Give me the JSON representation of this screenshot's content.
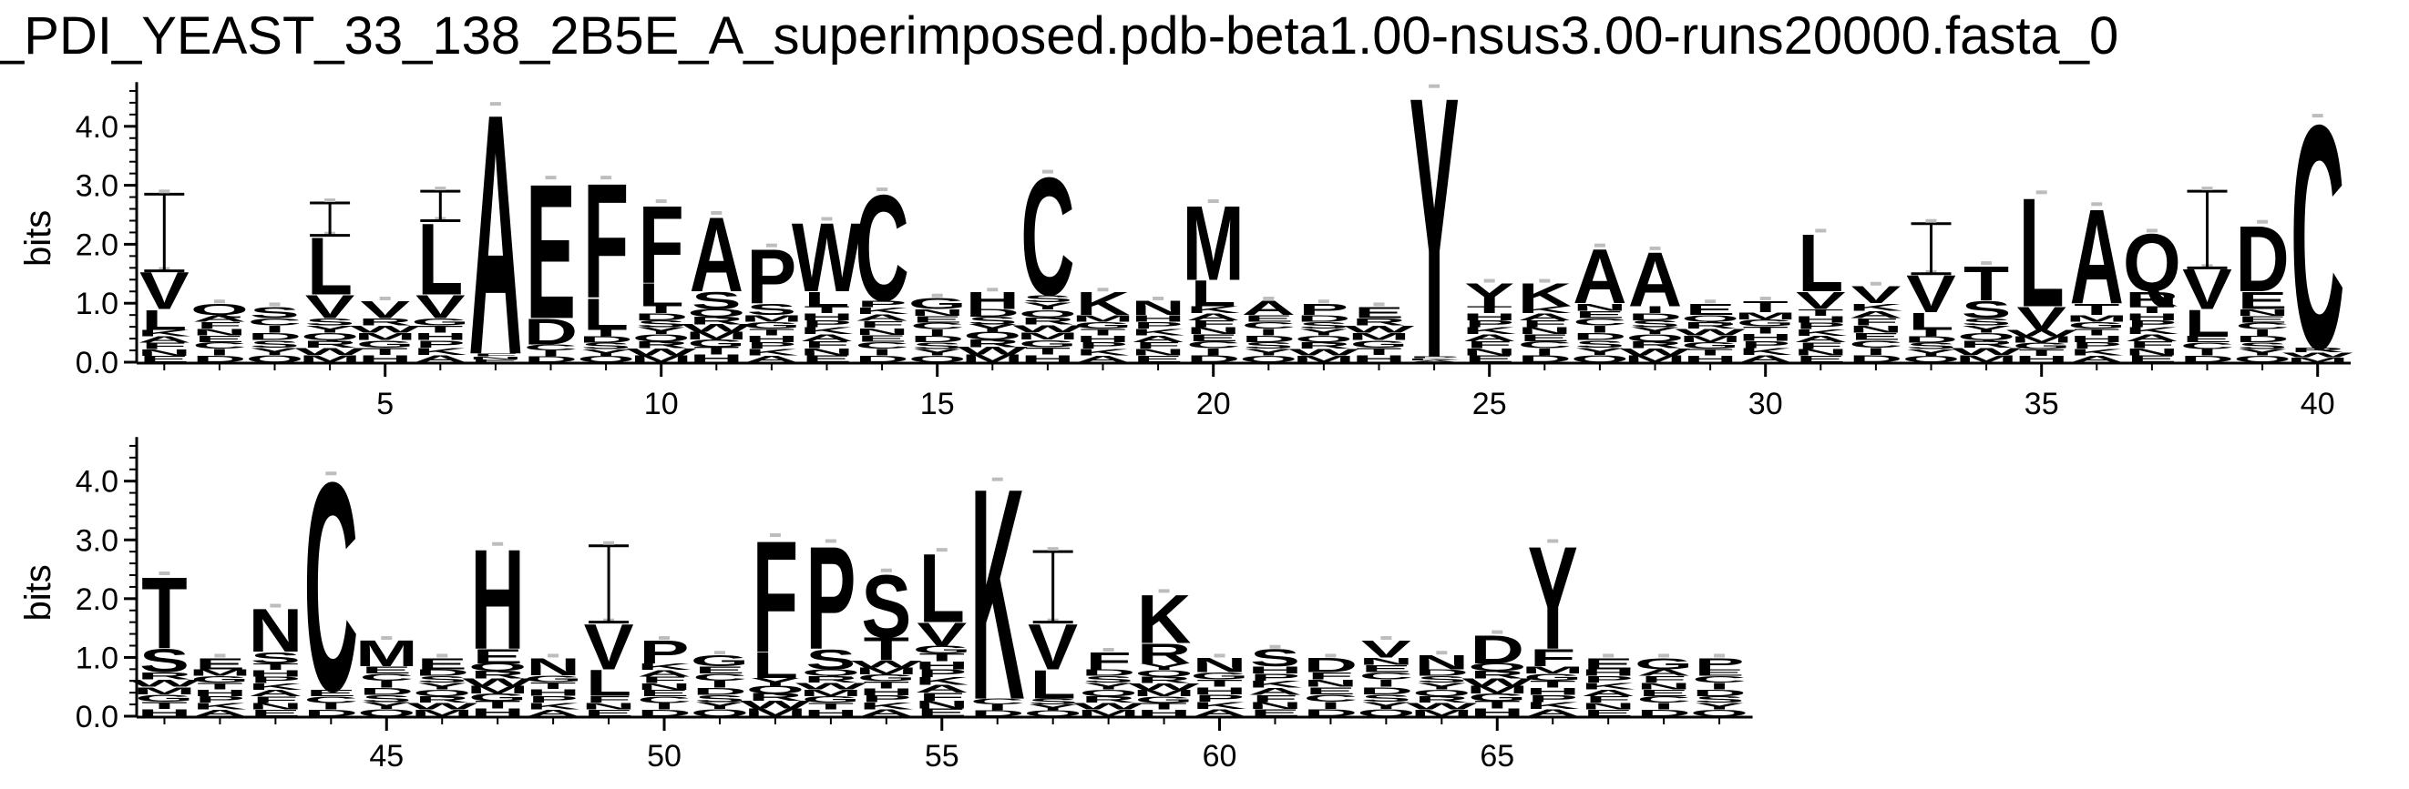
{
  "title": "_PDI_YEAST_33_138_2B5E_A_superimposed.pdb-beta1.00-nsus3.00-runs20000.fasta_0",
  "colors": {
    "ink": "#000000",
    "cap": "#bdbdbd",
    "background": "#ffffff"
  },
  "chart_data": [
    {
      "type": "sequence-logo",
      "row": 1,
      "ylabel": "bits",
      "ylim": [
        0,
        4.8
      ],
      "yticks": [
        "0.0",
        "1.0",
        "2.0",
        "3.0",
        "4.0"
      ],
      "xlim": [
        0.5,
        40.5
      ],
      "xticks": [
        "5",
        "10",
        "15",
        "20",
        "25",
        "30",
        "35",
        "40"
      ],
      "positions": [
        {
          "pos": 1,
          "top": "V",
          "top_h": 0.65,
          "second": "L",
          "second_h": 0.35,
          "total": 1.55,
          "err": 1.3
        },
        {
          "pos": 2,
          "top": "Q",
          "top_h": 0.2,
          "second": "",
          "second_h": 0,
          "total": 1.0,
          "err": 0
        },
        {
          "pos": 3,
          "top": "S",
          "top_h": 0.2,
          "second": "",
          "second_h": 0,
          "total": 0.95,
          "err": 0
        },
        {
          "pos": 4,
          "top": "L",
          "top_h": 1.0,
          "second": "V",
          "second_h": 0.4,
          "total": 2.15,
          "err": 0.55
        },
        {
          "pos": 5,
          "top": "V",
          "top_h": 0.3,
          "second": "",
          "second_h": 0,
          "total": 1.05,
          "err": 0
        },
        {
          "pos": 6,
          "top": "L",
          "top_h": 1.25,
          "second": "V",
          "second_h": 0.4,
          "total": 2.4,
          "err": 0.5
        },
        {
          "pos": 7,
          "top": "A",
          "top_h": 4.2,
          "second": "",
          "second_h": 0,
          "total": 4.35,
          "err": 0
        },
        {
          "pos": 8,
          "top": "E",
          "top_h": 2.35,
          "second": "D",
          "second_h": 0.45,
          "total": 3.1,
          "err": 0
        },
        {
          "pos": 9,
          "top": "F",
          "top_h": 2.0,
          "second": "L",
          "second_h": 0.55,
          "total": 3.1,
          "err": 0
        },
        {
          "pos": 10,
          "top": "F",
          "top_h": 1.35,
          "second": "L",
          "second_h": 0.4,
          "total": 2.7,
          "err": 0
        },
        {
          "pos": 11,
          "top": "A",
          "top_h": 1.3,
          "second": "S",
          "second_h": 0.3,
          "total": 2.5,
          "err": 0
        },
        {
          "pos": 12,
          "top": "P",
          "top_h": 0.95,
          "second": "S",
          "second_h": 0.2,
          "total": 1.95,
          "err": 0
        },
        {
          "pos": 13,
          "top": "W",
          "top_h": 1.2,
          "second": "L",
          "second_h": 0.25,
          "total": 2.4,
          "err": 0
        },
        {
          "pos": 14,
          "top": "C",
          "top_h": 1.85,
          "second": "",
          "second_h": 0,
          "total": 2.9,
          "err": 0
        },
        {
          "pos": 15,
          "top": "G",
          "top_h": 0.2,
          "second": "",
          "second_h": 0,
          "total": 1.1,
          "err": 0
        },
        {
          "pos": 16,
          "top": "H",
          "top_h": 0.3,
          "second": "",
          "second_h": 0,
          "total": 1.2,
          "err": 0
        },
        {
          "pos": 17,
          "top": "C",
          "top_h": 2.05,
          "second": "",
          "second_h": 0,
          "total": 3.2,
          "err": 0
        },
        {
          "pos": 18,
          "top": "K",
          "top_h": 0.4,
          "second": "",
          "second_h": 0,
          "total": 1.2,
          "err": 0
        },
        {
          "pos": 19,
          "top": "N",
          "top_h": 0.25,
          "second": "",
          "second_h": 0,
          "total": 1.05,
          "err": 0
        },
        {
          "pos": 20,
          "top": "M",
          "top_h": 1.3,
          "second": "L",
          "second_h": 0.45,
          "total": 2.7,
          "err": 0
        },
        {
          "pos": 21,
          "top": "A",
          "top_h": 0.25,
          "second": "",
          "second_h": 0,
          "total": 1.05,
          "err": 0
        },
        {
          "pos": 22,
          "top": "P",
          "top_h": 0.2,
          "second": "",
          "second_h": 0,
          "total": 1.0,
          "err": 0
        },
        {
          "pos": 23,
          "top": "E",
          "top_h": 0.2,
          "second": "",
          "second_h": 0,
          "total": 0.95,
          "err": 0
        },
        {
          "pos": 24,
          "top": "Y",
          "top_h": 4.55,
          "second": "",
          "second_h": 0,
          "total": 4.65,
          "err": 0
        },
        {
          "pos": 25,
          "top": "Y",
          "top_h": 0.4,
          "second": "",
          "second_h": 0,
          "total": 1.35,
          "err": 0
        },
        {
          "pos": 26,
          "top": "K",
          "top_h": 0.4,
          "second": "",
          "second_h": 0,
          "total": 1.35,
          "err": 0
        },
        {
          "pos": 27,
          "top": "A",
          "top_h": 0.95,
          "second": "",
          "second_h": 0,
          "total": 1.95,
          "err": 0
        },
        {
          "pos": 28,
          "top": "A",
          "top_h": 0.95,
          "second": "",
          "second_h": 0,
          "total": 1.9,
          "err": 0
        },
        {
          "pos": 29,
          "top": "E",
          "top_h": 0.2,
          "second": "",
          "second_h": 0,
          "total": 1.0,
          "err": 0
        },
        {
          "pos": 30,
          "top": "T",
          "top_h": 0.2,
          "second": "",
          "second_h": 0,
          "total": 1.05,
          "err": 0
        },
        {
          "pos": 31,
          "top": "L",
          "top_h": 1.0,
          "second": "V",
          "second_h": 0.3,
          "total": 2.2,
          "err": 0
        },
        {
          "pos": 32,
          "top": "V",
          "top_h": 0.3,
          "second": "",
          "second_h": 0,
          "total": 1.3,
          "err": 0
        },
        {
          "pos": 33,
          "top": "V",
          "top_h": 0.65,
          "second": "L",
          "second_h": 0.3,
          "total": 1.5,
          "err": 0.85
        },
        {
          "pos": 34,
          "top": "T",
          "top_h": 0.6,
          "second": "S",
          "second_h": 0.3,
          "total": 1.65,
          "err": 0
        },
        {
          "pos": 35,
          "top": "L",
          "top_h": 1.9,
          "second": "V",
          "second_h": 0.4,
          "total": 2.85,
          "err": 0
        },
        {
          "pos": 36,
          "top": "A",
          "top_h": 1.65,
          "second": "T",
          "second_h": 0.2,
          "total": 2.65,
          "err": 0
        },
        {
          "pos": 37,
          "top": "Q",
          "top_h": 1.0,
          "second": "R",
          "second_h": 0.25,
          "total": 2.2,
          "err": 0
        },
        {
          "pos": 38,
          "top": "V",
          "top_h": 0.7,
          "second": "L",
          "second_h": 0.45,
          "total": 1.6,
          "err": 1.3
        },
        {
          "pos": 39,
          "top": "D",
          "top_h": 1.15,
          "second": "E",
          "second_h": 0.3,
          "total": 2.35,
          "err": 0
        },
        {
          "pos": 40,
          "top": "C",
          "top_h": 3.9,
          "second": "",
          "second_h": 0,
          "total": 4.15,
          "err": 0
        }
      ]
    },
    {
      "type": "sequence-logo",
      "row": 2,
      "ylabel": "bits",
      "ylim": [
        0,
        4.8
      ],
      "yticks": [
        "0.0",
        "1.0",
        "2.0",
        "3.0",
        "4.0"
      ],
      "xlim": [
        40.5,
        69.5
      ],
      "xticks": [
        "45",
        "50",
        "55",
        "60",
        "65"
      ],
      "positions": [
        {
          "pos": 41,
          "top": "T",
          "top_h": 1.25,
          "second": "S",
          "second_h": 0.4,
          "total": 2.4,
          "err": 0
        },
        {
          "pos": 42,
          "top": "E",
          "top_h": 0.2,
          "second": "",
          "second_h": 0,
          "total": 1.0,
          "err": 0
        },
        {
          "pos": 43,
          "top": "N",
          "top_h": 0.75,
          "second": "S",
          "second_h": 0.2,
          "total": 1.85,
          "err": 0
        },
        {
          "pos": 44,
          "top": "C",
          "top_h": 3.65,
          "second": "",
          "second_h": 0,
          "total": 4.1,
          "err": 0
        },
        {
          "pos": 45,
          "top": "M",
          "top_h": 0.45,
          "second": "",
          "second_h": 0,
          "total": 1.3,
          "err": 0
        },
        {
          "pos": 46,
          "top": "E",
          "top_h": 0.2,
          "second": "",
          "second_h": 0,
          "total": 1.0,
          "err": 0
        },
        {
          "pos": 47,
          "top": "H",
          "top_h": 1.75,
          "second": "E",
          "second_h": 0.25,
          "total": 2.9,
          "err": 0
        },
        {
          "pos": 48,
          "top": "N",
          "top_h": 0.3,
          "second": "",
          "second_h": 0,
          "total": 1.0,
          "err": 0
        },
        {
          "pos": 49,
          "top": "V",
          "top_h": 0.8,
          "second": "L",
          "second_h": 0.45,
          "total": 1.6,
          "err": 1.3
        },
        {
          "pos": 50,
          "top": "P",
          "top_h": 0.4,
          "second": "",
          "second_h": 0,
          "total": 1.3,
          "err": 0
        },
        {
          "pos": 51,
          "top": "G",
          "top_h": 0.2,
          "second": "",
          "second_h": 0,
          "total": 1.05,
          "err": 0
        },
        {
          "pos": 52,
          "top": "F",
          "top_h": 1.95,
          "second": "L",
          "second_h": 0.45,
          "total": 3.05,
          "err": 0
        },
        {
          "pos": 53,
          "top": "P",
          "top_h": 1.8,
          "second": "S",
          "second_h": 0.35,
          "total": 2.95,
          "err": 0
        },
        {
          "pos": 54,
          "top": "S",
          "top_h": 1.1,
          "second": "T",
          "second_h": 0.4,
          "total": 2.45,
          "err": 0
        },
        {
          "pos": 55,
          "top": "L",
          "top_h": 1.2,
          "second": "V",
          "second_h": 0.4,
          "total": 2.8,
          "err": 0
        },
        {
          "pos": 56,
          "top": "K",
          "top_h": 3.7,
          "second": "",
          "second_h": 0,
          "total": 4.0,
          "err": 0
        },
        {
          "pos": 57,
          "top": "V",
          "top_h": 0.8,
          "second": "L",
          "second_h": 0.5,
          "total": 1.6,
          "err": 1.2
        },
        {
          "pos": 58,
          "top": "F",
          "top_h": 0.3,
          "second": "",
          "second_h": 0,
          "total": 1.1,
          "err": 0
        },
        {
          "pos": 59,
          "top": "K",
          "top_h": 0.85,
          "second": "R",
          "second_h": 0.35,
          "total": 2.1,
          "err": 0
        },
        {
          "pos": 60,
          "top": "N",
          "top_h": 0.25,
          "second": "",
          "second_h": 0,
          "total": 1.0,
          "err": 0
        },
        {
          "pos": 61,
          "top": "S",
          "top_h": 0.3,
          "second": "",
          "second_h": 0,
          "total": 1.15,
          "err": 0
        },
        {
          "pos": 62,
          "top": "D",
          "top_h": 0.25,
          "second": "",
          "second_h": 0,
          "total": 1.0,
          "err": 0
        },
        {
          "pos": 63,
          "top": "V",
          "top_h": 0.3,
          "second": "",
          "second_h": 0,
          "total": 1.3,
          "err": 0
        },
        {
          "pos": 64,
          "top": "N",
          "top_h": 0.25,
          "second": "",
          "second_h": 0,
          "total": 1.05,
          "err": 0
        },
        {
          "pos": 65,
          "top": "D",
          "top_h": 0.5,
          "second": "",
          "second_h": 0,
          "total": 1.4,
          "err": 0
        },
        {
          "pos": 66,
          "top": "Y",
          "top_h": 1.8,
          "second": "F",
          "second_h": 0.3,
          "total": 2.95,
          "err": 0
        },
        {
          "pos": 67,
          "top": "E",
          "top_h": 0.2,
          "second": "",
          "second_h": 0,
          "total": 1.0,
          "err": 0
        },
        {
          "pos": 68,
          "top": "G",
          "top_h": 0.2,
          "second": "",
          "second_h": 0,
          "total": 1.0,
          "err": 0
        },
        {
          "pos": 69,
          "top": "P",
          "top_h": 0.2,
          "second": "",
          "second_h": 0,
          "total": 1.0,
          "err": 0
        }
      ]
    }
  ]
}
